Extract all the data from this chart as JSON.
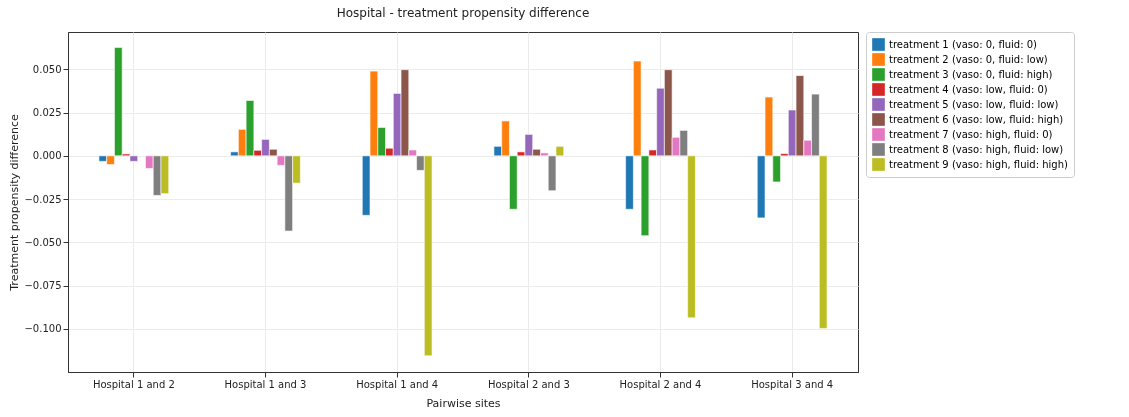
{
  "chart_data": {
    "type": "bar",
    "title": "Hospital - treatment propensity difference",
    "xlabel": "Pairwise sites",
    "ylabel": "Treatment propensity difference",
    "categories": [
      "Hospital 1 and 2",
      "Hospital 1 and 3",
      "Hospital 1 and 4",
      "Hospital 2 and 3",
      "Hospital 2 and 4",
      "Hospital 3 and 4"
    ],
    "series": [
      {
        "name": "treatment 1 (vaso: 0, fluid: 0)",
        "color": "#1f77b4",
        "values": [
          -0.0032,
          0.0023,
          -0.0344,
          0.0055,
          -0.0309,
          -0.0359
        ]
      },
      {
        "name": "treatment 2 (vaso: 0, fluid: low)",
        "color": "#ff7f0e",
        "values": [
          -0.005,
          0.0153,
          0.049,
          0.0202,
          0.0548,
          0.034
        ]
      },
      {
        "name": "treatment 3 (vaso: 0, fluid: high)",
        "color": "#2ca02c",
        "values": [
          0.0626,
          0.032,
          0.0164,
          -0.0309,
          -0.0462,
          -0.0151
        ]
      },
      {
        "name": "treatment 4 (vaso: low, fluid: 0)",
        "color": "#d62728",
        "values": [
          0.0011,
          0.0032,
          0.0044,
          0.0023,
          0.0034,
          0.0013
        ]
      },
      {
        "name": "treatment 5 (vaso: low, fluid: low)",
        "color": "#9467bd",
        "values": [
          -0.0032,
          0.0095,
          0.0361,
          0.0124,
          0.0391,
          0.0265
        ]
      },
      {
        "name": "treatment 6 (vaso: low, fluid: high)",
        "color": "#8c564b",
        "values": [
          null,
          0.0038,
          0.0498,
          0.0038,
          0.0498,
          0.0464
        ]
      },
      {
        "name": "treatment 7 (vaso: high, fluid: 0)",
        "color": "#e377c2",
        "values": [
          -0.0073,
          -0.0055,
          0.0034,
          0.0017,
          0.0107,
          0.009
        ]
      },
      {
        "name": "treatment 8 (vaso: high, fluid: low)",
        "color": "#7f7f7f",
        "values": [
          -0.0229,
          -0.0435,
          -0.0084,
          -0.0202,
          0.0147,
          0.0357
        ]
      },
      {
        "name": "treatment 9 (vaso: high, fluid: high)",
        "color": "#bcbd22",
        "values": [
          -0.0219,
          -0.0158,
          -0.1156,
          0.0055,
          -0.0937,
          -0.0998
        ]
      }
    ],
    "ylim": [
      -0.125,
      0.0716
    ],
    "yticks": [
      {
        "value": -0.1,
        "label": "−0.100"
      },
      {
        "value": -0.075,
        "label": "−0.075"
      },
      {
        "value": -0.05,
        "label": "−0.050"
      },
      {
        "value": -0.025,
        "label": "−0.025"
      },
      {
        "value": 0,
        "label": "0.000"
      },
      {
        "value": 0.025,
        "label": "0.025"
      },
      {
        "value": 0.05,
        "label": "0.050"
      }
    ],
    "grid": true,
    "legend": "top right"
  }
}
